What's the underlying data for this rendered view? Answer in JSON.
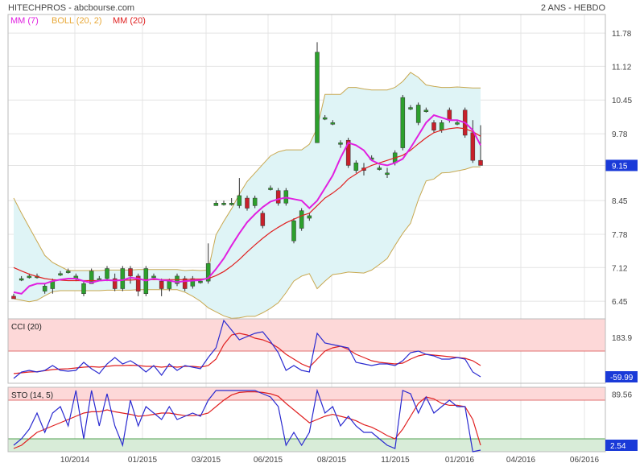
{
  "header": {
    "title": "HITECHPROS - abcbourse.com",
    "period": "2 ANS - HEBDO"
  },
  "legend": [
    {
      "label": "MM (7)",
      "color": "#e020e0"
    },
    {
      "label": "BOLL (20, 2)",
      "color": "#e8a838"
    },
    {
      "label": "MM (20)",
      "color": "#e02020"
    }
  ],
  "colors": {
    "up": "#2ca02c",
    "down": "#c8202a",
    "band_fill": "#dff4f6",
    "band_line": "#c8a850",
    "cci": "#2a2ad0",
    "signal": "#e02020",
    "overbought": "#fdd8d8",
    "oversold": "#d8ecd8"
  },
  "chart_data": [
    {
      "type": "candlestick",
      "panel": "price",
      "y_ticks": [
        "11.78",
        "11.12",
        "10.45",
        "9.78",
        "9.15",
        "8.45",
        "7.78",
        "7.12",
        "6.45"
      ],
      "y_range": [
        6.1,
        12.15
      ],
      "last_value": "9.15",
      "x_labels": [
        "10/2014",
        "01/2015",
        "03/2015",
        "06/2015",
        "08/2015",
        "11/2015",
        "01/2016",
        "04/2016",
        "06/2016"
      ],
      "candles": [
        [
          6.55,
          6.5,
          6.6,
          6.5
        ],
        [
          6.9,
          6.9,
          6.95,
          6.85
        ],
        [
          6.95,
          6.95,
          7.0,
          6.9
        ],
        [
          6.95,
          6.95,
          7.0,
          6.9
        ],
        [
          6.65,
          6.75,
          6.8,
          6.6
        ],
        [
          6.7,
          6.85,
          6.9,
          6.6
        ],
        [
          7.0,
          7.0,
          7.05,
          6.95
        ],
        [
          7.05,
          7.05,
          7.1,
          7.0
        ],
        [
          6.9,
          6.95,
          7.0,
          6.85
        ],
        [
          6.6,
          6.8,
          6.85,
          6.55
        ],
        [
          6.8,
          7.05,
          7.1,
          6.8
        ],
        [
          6.9,
          6.9,
          6.95,
          6.85
        ],
        [
          6.9,
          7.1,
          7.15,
          6.85
        ],
        [
          6.9,
          6.7,
          7.0,
          6.65
        ],
        [
          6.7,
          7.1,
          7.15,
          6.65
        ],
        [
          7.1,
          6.95,
          7.15,
          6.8
        ],
        [
          6.95,
          6.65,
          7.0,
          6.55
        ],
        [
          6.6,
          7.1,
          7.15,
          6.55
        ],
        [
          6.95,
          6.95,
          7.0,
          6.9
        ],
        [
          6.85,
          6.7,
          6.9,
          6.55
        ],
        [
          6.7,
          6.85,
          6.9,
          6.65
        ],
        [
          6.8,
          6.95,
          7.0,
          6.75
        ],
        [
          6.9,
          6.7,
          6.95,
          6.65
        ],
        [
          6.75,
          6.9,
          6.95,
          6.7
        ],
        [
          6.85,
          6.85,
          6.9,
          6.8
        ],
        [
          6.85,
          7.2,
          7.6,
          6.8
        ],
        [
          8.35,
          8.4,
          8.45,
          8.35
        ],
        [
          8.4,
          8.4,
          8.45,
          8.35
        ],
        [
          8.4,
          8.4,
          8.5,
          8.35
        ],
        [
          8.35,
          8.55,
          8.9,
          8.3
        ],
        [
          8.5,
          8.3,
          8.55,
          8.25
        ],
        [
          8.35,
          8.5,
          8.55,
          8.3
        ],
        [
          8.2,
          7.95,
          8.25,
          7.9
        ],
        [
          8.7,
          8.7,
          8.75,
          8.65
        ],
        [
          8.65,
          8.4,
          8.7,
          8.35
        ],
        [
          8.4,
          8.65,
          8.7,
          8.35
        ],
        [
          7.65,
          8.05,
          8.1,
          7.6
        ],
        [
          7.9,
          8.25,
          8.3,
          7.85
        ],
        [
          8.1,
          8.15,
          8.2,
          8.05
        ],
        [
          9.6,
          11.4,
          11.6,
          9.6
        ],
        [
          10.1,
          10.1,
          10.15,
          10.05
        ],
        [
          10.0,
          10.0,
          10.05,
          9.95
        ],
        [
          9.6,
          9.6,
          9.65,
          9.5
        ],
        [
          9.65,
          9.15,
          9.7,
          9.1
        ],
        [
          9.05,
          9.2,
          9.25,
          9.0
        ],
        [
          9.1,
          9.05,
          9.2,
          8.95
        ],
        [
          9.3,
          9.3,
          9.35,
          9.25
        ],
        [
          9.1,
          9.1,
          9.15,
          9.05
        ],
        [
          9.0,
          9.0,
          9.1,
          8.9
        ],
        [
          9.2,
          9.4,
          9.45,
          9.15
        ],
        [
          9.5,
          10.5,
          10.55,
          9.45
        ],
        [
          10.3,
          10.3,
          10.35,
          10.25
        ],
        [
          10.0,
          10.35,
          10.4,
          9.95
        ],
        [
          10.25,
          10.25,
          10.3,
          10.2
        ],
        [
          10.0,
          9.85,
          10.05,
          9.8
        ],
        [
          9.85,
          10.0,
          10.05,
          9.8
        ],
        [
          10.25,
          10.05,
          10.3,
          10.0
        ],
        [
          10.0,
          10.0,
          10.05,
          9.95
        ],
        [
          10.25,
          9.75,
          10.3,
          9.7
        ],
        [
          9.8,
          9.25,
          10.05,
          9.2
        ],
        [
          9.25,
          9.15,
          9.95,
          9.15
        ]
      ],
      "mm7": [
        6.63,
        6.6,
        6.75,
        6.8,
        6.8,
        6.85,
        6.88,
        6.9,
        6.9,
        6.85,
        6.82,
        6.86,
        6.87,
        6.86,
        6.87,
        6.92,
        6.9,
        6.86,
        6.9,
        6.87,
        6.86,
        6.83,
        6.85,
        6.86,
        6.87,
        6.91,
        7.09,
        7.3,
        7.56,
        7.8,
        8.02,
        8.18,
        8.32,
        8.43,
        8.48,
        8.51,
        8.48,
        8.45,
        8.3,
        8.45,
        8.7,
        8.95,
        9.3,
        9.6,
        9.55,
        9.45,
        9.25,
        9.18,
        9.15,
        9.2,
        9.28,
        9.5,
        9.75,
        10.0,
        10.15,
        10.1,
        10.05,
        10.05,
        10.0,
        9.85,
        9.55
      ],
      "mm20": [
        7.12,
        7.05,
        6.99,
        6.94,
        6.9,
        6.88,
        6.87,
        6.86,
        6.86,
        6.86,
        6.86,
        6.86,
        6.87,
        6.87,
        6.87,
        6.87,
        6.88,
        6.88,
        6.88,
        6.88,
        6.88,
        6.88,
        6.88,
        6.89,
        6.89,
        6.9,
        6.96,
        7.04,
        7.15,
        7.28,
        7.43,
        7.57,
        7.7,
        7.82,
        7.92,
        8.01,
        8.08,
        8.15,
        8.2,
        8.35,
        8.5,
        8.6,
        8.72,
        8.88,
        8.98,
        9.08,
        9.15,
        9.2,
        9.25,
        9.3,
        9.35,
        9.45,
        9.58,
        9.7,
        9.8,
        9.85,
        9.88,
        9.9,
        9.88,
        9.82,
        9.73
      ],
      "boll_upper": [
        8.5,
        8.2,
        7.92,
        7.64,
        7.36,
        7.22,
        7.14,
        7.06,
        7.06,
        7.06,
        7.06,
        7.06,
        7.07,
        7.07,
        7.07,
        7.07,
        7.08,
        7.08,
        7.08,
        7.08,
        7.08,
        7.08,
        7.06,
        7.07,
        7.06,
        7.07,
        7.77,
        8.04,
        8.29,
        8.58,
        8.83,
        9.0,
        9.17,
        9.34,
        9.42,
        9.46,
        9.46,
        9.46,
        9.57,
        9.89,
        10.56,
        10.56,
        10.56,
        10.7,
        10.7,
        10.67,
        10.65,
        10.65,
        10.65,
        10.7,
        10.82,
        11.0,
        10.9,
        10.75,
        10.72,
        10.7,
        10.7,
        10.71,
        10.7,
        10.69,
        10.69
      ],
      "boll_lower": [
        6.5,
        6.47,
        6.44,
        6.47,
        6.56,
        6.64,
        6.66,
        6.66,
        6.66,
        6.66,
        6.66,
        6.66,
        6.67,
        6.67,
        6.67,
        6.67,
        6.68,
        6.68,
        6.68,
        6.68,
        6.68,
        6.68,
        6.63,
        6.55,
        6.45,
        6.32,
        6.24,
        6.16,
        6.11,
        6.12,
        6.15,
        6.15,
        6.22,
        6.31,
        6.42,
        6.62,
        6.85,
        6.95,
        7.0,
        6.7,
        6.85,
        6.98,
        7.0,
        7.03,
        7.02,
        7.01,
        7.07,
        7.18,
        7.3,
        7.56,
        7.8,
        8.0,
        8.47,
        8.84,
        8.88,
        9.0,
        9.01,
        9.04,
        9.07,
        9.12,
        9.12
      ]
    },
    {
      "type": "line",
      "panel": "cci",
      "title": "CCI (20)",
      "y_ticks": [
        "183.9"
      ],
      "last_value": "-59.99",
      "y_range": [
        -100,
        300
      ],
      "overbought": 100,
      "oversold": -100,
      "values": [
        -70,
        -30,
        -20,
        -30,
        -20,
        10,
        -20,
        -25,
        -20,
        30,
        -10,
        -40,
        20,
        60,
        20,
        40,
        10,
        -30,
        10,
        -50,
        20,
        -20,
        10,
        0,
        -10,
        60,
        120,
        290,
        230,
        170,
        190,
        210,
        220,
        160,
        90,
        -20,
        10,
        -20,
        -30,
        210,
        150,
        140,
        130,
        120,
        30,
        20,
        10,
        20,
        20,
        10,
        40,
        90,
        100,
        80,
        70,
        50,
        50,
        60,
        50,
        -30,
        -60
      ],
      "signal": [
        -40,
        -35,
        -30,
        -28,
        -22,
        -15,
        -12,
        -10,
        -5,
        0,
        3,
        0,
        5,
        10,
        10,
        12,
        10,
        5,
        5,
        0,
        5,
        0,
        5,
        5,
        0,
        10,
        50,
        140,
        200,
        210,
        200,
        180,
        170,
        150,
        120,
        80,
        50,
        20,
        0,
        50,
        100,
        120,
        130,
        110,
        80,
        60,
        40,
        30,
        25,
        20,
        25,
        50,
        70,
        80,
        75,
        70,
        65,
        60,
        55,
        40,
        10
      ]
    },
    {
      "type": "line",
      "panel": "sto",
      "title": "STO (14, 5)",
      "y_ticks": [
        "89.56"
      ],
      "last_value": "2.54",
      "y_range": [
        0,
        100
      ],
      "overbought": 80,
      "oversold": 20,
      "values": [
        10,
        20,
        35,
        60,
        30,
        60,
        70,
        40,
        95,
        20,
        95,
        40,
        90,
        40,
        10,
        80,
        40,
        70,
        60,
        50,
        70,
        50,
        55,
        60,
        55,
        80,
        95,
        95,
        95,
        95,
        95,
        95,
        90,
        85,
        70,
        10,
        30,
        10,
        30,
        95,
        60,
        70,
        40,
        55,
        40,
        30,
        30,
        20,
        10,
        5,
        95,
        90,
        60,
        85,
        60,
        70,
        80,
        70,
        70,
        0,
        2.54
      ],
      "signal": [
        5,
        10,
        20,
        30,
        35,
        40,
        45,
        50,
        55,
        60,
        62,
        62,
        65,
        62,
        60,
        58,
        55,
        56,
        58,
        60,
        60,
        58,
        56,
        56,
        57,
        60,
        70,
        80,
        88,
        92,
        93,
        93,
        92,
        90,
        86,
        75,
        65,
        55,
        45,
        50,
        55,
        58,
        55,
        52,
        48,
        42,
        38,
        32,
        25,
        20,
        35,
        55,
        75,
        85,
        82,
        75,
        72,
        72,
        70,
        50,
        10
      ]
    }
  ]
}
